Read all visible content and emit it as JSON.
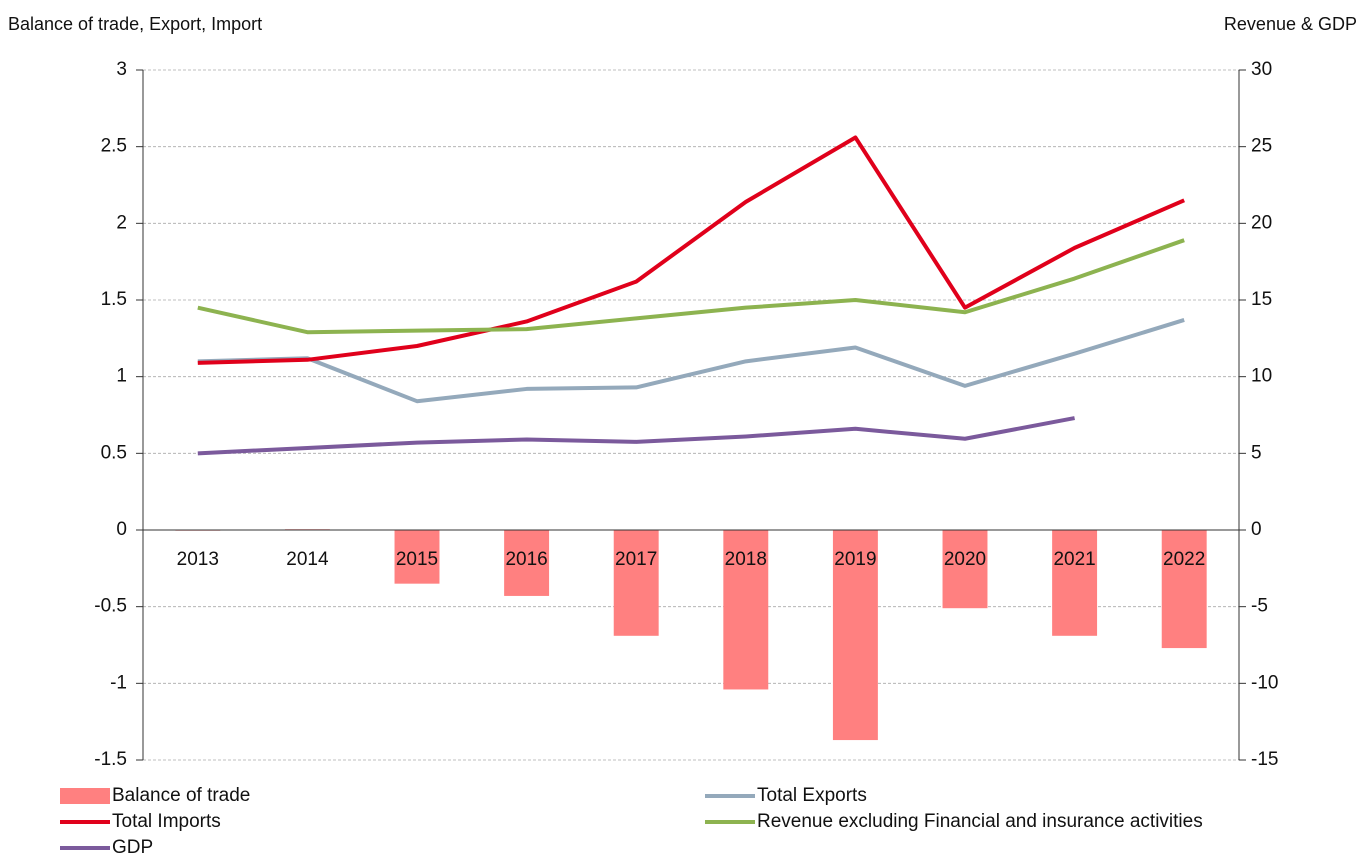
{
  "chart_data": {
    "type": "bar",
    "y_label": "Balance of trade, Export, Import",
    "y2_label": "Revenue & GDP",
    "categories": [
      "2013",
      "2014",
      "2015",
      "2016",
      "2017",
      "2018",
      "2019",
      "2020",
      "2021",
      "2022"
    ],
    "series": [
      {
        "name": "Balance of trade",
        "type": "bar",
        "color": "#ff8080",
        "values": [
          0.002,
          0.005,
          -0.35,
          -0.43,
          -0.69,
          -1.04,
          -1.37,
          -0.51,
          -0.69,
          -0.77
        ]
      },
      {
        "name": "Total Exports",
        "type": "line",
        "color": "#94a9bb",
        "values": [
          1.1,
          1.12,
          0.84,
          0.92,
          0.93,
          1.1,
          1.19,
          0.94,
          1.15,
          1.37
        ]
      },
      {
        "name": "Total Imports",
        "type": "line",
        "color": "#e0001b",
        "values": [
          1.09,
          1.11,
          1.2,
          1.36,
          1.62,
          2.14,
          2.56,
          1.45,
          1.84,
          2.15
        ]
      },
      {
        "name": "Revenue excluding Financial and insurance activities",
        "type": "line",
        "axis": "y2",
        "color": "#8db350",
        "values": [
          14.5,
          12.9,
          13.0,
          13.1,
          13.8,
          14.5,
          15.0,
          14.2,
          16.4,
          18.9
        ]
      },
      {
        "name": "GDP",
        "type": "line",
        "axis": "y2",
        "color": "#7b5a9c",
        "values": [
          5.0,
          5.35,
          5.7,
          5.9,
          5.75,
          6.1,
          6.6,
          5.95,
          7.3,
          null
        ]
      }
    ],
    "ylim": [
      -1.5,
      3
    ],
    "yticks": [
      -1.5,
      -1,
      -0.5,
      0,
      0.5,
      1,
      1.5,
      2,
      2.5,
      3
    ],
    "y2lim": [
      -15,
      30
    ],
    "y2ticks": [
      -15,
      -10,
      -5,
      0,
      5,
      10,
      15,
      20,
      25,
      30
    ],
    "grid": true
  }
}
